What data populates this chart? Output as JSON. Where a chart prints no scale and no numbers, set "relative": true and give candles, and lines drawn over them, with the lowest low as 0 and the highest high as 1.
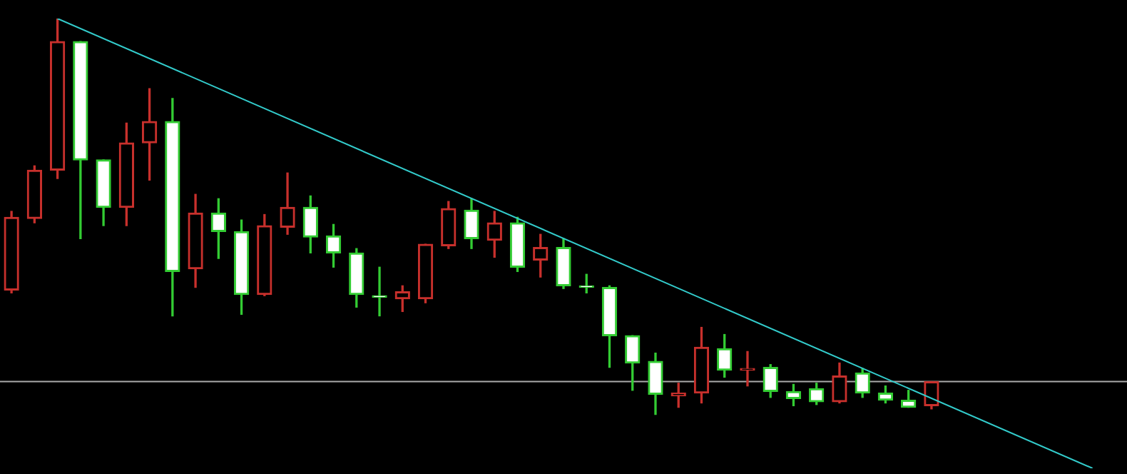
{
  "chart_data": {
    "type": "candlestick",
    "relative": true,
    "categories": [
      null,
      null,
      null,
      null,
      null,
      null,
      null,
      null,
      null,
      null,
      null,
      null,
      null,
      null,
      null,
      null,
      null,
      null,
      null,
      null,
      null,
      null,
      null,
      null,
      null,
      null,
      null,
      null,
      null,
      null,
      null,
      null,
      null,
      null,
      null,
      null,
      null,
      null,
      null,
      null,
      null,
      null,
      null,
      null,
      null,
      null,
      null,
      null,
      null
    ],
    "ohlc": [
      [
        0.314,
        0.513,
        0.307,
        0.498
      ],
      [
        0.495,
        0.628,
        0.484,
        0.617
      ],
      [
        0.617,
        1,
        0.596,
        0.942
      ],
      [
        0.942,
        0.942,
        0.444,
        0.643
      ],
      [
        0.643,
        0.643,
        0.477,
        0.523
      ],
      [
        0.523,
        0.736,
        0.477,
        0.686
      ],
      [
        0.686,
        0.823,
        0.592,
        0.74
      ],
      [
        0.74,
        0.798,
        0.249,
        0.361
      ],
      [
        0.368,
        0.556,
        0.321,
        0.509
      ],
      [
        0.509,
        0.545,
        0.394,
        0.462
      ],
      [
        0.462,
        0.491,
        0.253,
        0.303
      ],
      [
        0.303,
        0.505,
        0.3,
        0.477
      ],
      [
        0.473,
        0.61,
        0.455,
        0.523
      ],
      [
        0.523,
        0.552,
        0.408,
        0.448
      ],
      [
        0.451,
        0.48,
        0.372,
        0.408
      ],
      [
        0.408,
        0.419,
        0.271,
        0.303
      ],
      [
        0.3,
        0.372,
        0.249,
        0.296
      ],
      [
        0.292,
        0.325,
        0.26,
        0.31
      ],
      [
        0.292,
        0.43,
        0.282,
        0.43
      ],
      [
        0.426,
        0.538,
        0.419,
        0.52
      ],
      [
        0.516,
        0.545,
        0.419,
        0.444
      ],
      [
        0.44,
        0.513,
        0.397,
        0.484
      ],
      [
        0.484,
        0.498,
        0.361,
        0.372
      ],
      [
        0.39,
        0.455,
        0.347,
        0.422
      ],
      [
        0.422,
        0.444,
        0.318,
        0.325
      ],
      [
        0.325,
        0.354,
        0.307,
        0.321
      ],
      [
        0.321,
        0.325,
        0.119,
        0.199
      ],
      [
        0.199,
        0.199,
        0.061,
        0.13
      ],
      [
        0.134,
        0.155,
        0,
        0.051
      ],
      [
        0.047,
        0.079,
        0.018,
        0.054
      ],
      [
        0.054,
        0.22,
        0.029,
        0.17
      ],
      [
        0.166,
        0.202,
        0.094,
        0.112
      ],
      [
        0.112,
        0.159,
        0.072,
        0.116
      ],
      [
        0.119,
        0.126,
        0.043,
        0.058
      ],
      [
        0.058,
        0.076,
        0.022,
        0.04
      ],
      [
        0.065,
        0.079,
        0.025,
        0.032
      ],
      [
        0.032,
        0.13,
        0.029,
        0.097
      ],
      [
        0.105,
        0.116,
        0.043,
        0.054
      ],
      [
        0.054,
        0.072,
        0.029,
        0.036
      ],
      [
        0.036,
        0.061,
        0.018,
        0.018
      ],
      [
        0.022,
        0.083,
        0.014,
        0.083
      ],
      null,
      null,
      null,
      null,
      null,
      null,
      null,
      null
    ],
    "colors": [
      "#c8302c",
      "#c8302c",
      "#c8302c",
      "#33cc33",
      "#33cc33",
      "#c8302c",
      "#c8302c",
      "#33cc33",
      "#c8302c",
      "#33cc33",
      "#33cc33",
      "#c8302c",
      "#c8302c",
      "#33cc33",
      "#33cc33",
      "#33cc33",
      "#33cc33",
      "#c8302c",
      "#c8302c",
      "#c8302c",
      "#33cc33",
      "#c8302c",
      "#33cc33",
      "#c8302c",
      "#33cc33",
      "#33cc33",
      "#33cc33",
      "#33cc33",
      "#33cc33",
      "#c8302c",
      "#c8302c",
      "#33cc33",
      "#c8302c",
      "#33cc33",
      "#33cc33",
      "#33cc33",
      "#c8302c",
      "#33cc33",
      "#33cc33",
      "#33cc33",
      "#c8302c",
      null,
      null,
      null,
      null,
      null,
      null,
      null,
      null
    ],
    "series": [
      {
        "type": "line",
        "color": "#33cccc",
        "values": [
          null,
          null,
          1,
          null,
          null,
          null,
          null,
          null,
          null,
          null,
          null,
          null,
          null,
          null,
          null,
          null,
          null,
          null,
          null,
          null,
          null,
          null,
          null,
          null,
          null,
          null,
          null,
          null,
          null,
          null,
          null,
          null,
          null,
          null,
          null,
          null,
          null,
          null,
          null,
          null,
          null,
          null,
          null,
          null,
          null,
          null,
          null,
          -0.136,
          null
        ]
      }
    ],
    "ref_lines": [
      {
        "axis": "y",
        "value": 0.083,
        "color": "#aaaaaa"
      }
    ]
  }
}
